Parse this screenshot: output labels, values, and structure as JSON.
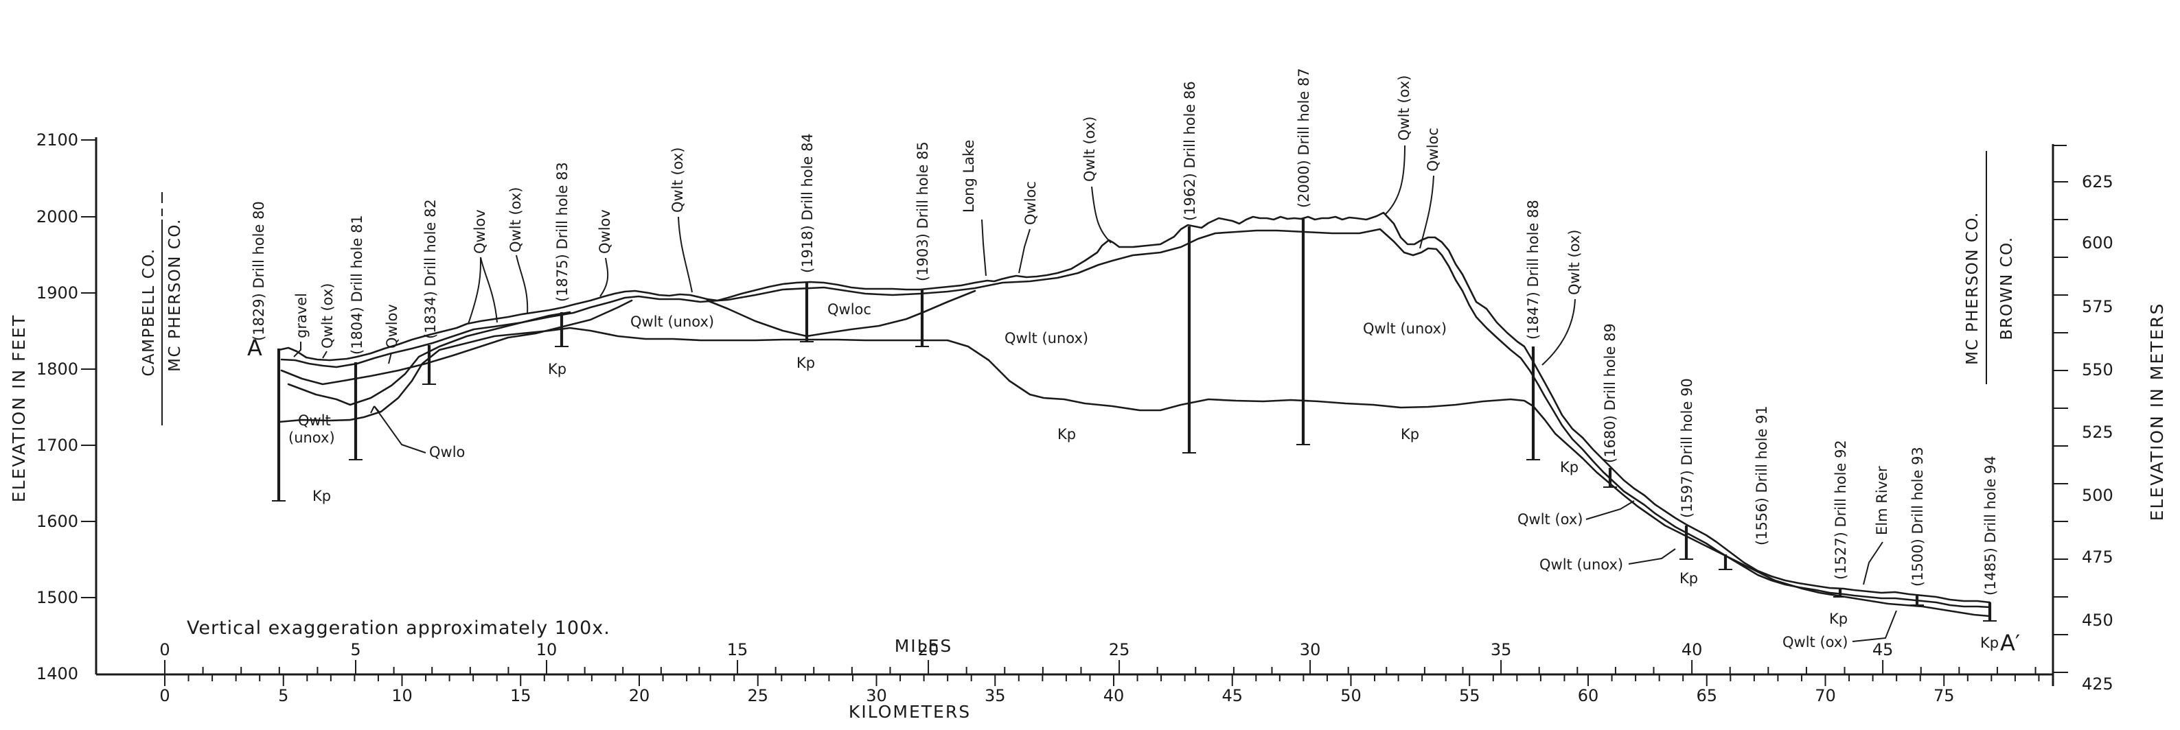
{
  "figure": {
    "left_axis_title": "ELEVATION IN FEET",
    "right_axis_title": "ELEVATION IN METERS",
    "miles_title": "MILES",
    "km_title": "KILOMETERS",
    "exaggeration_note": "Vertical exaggeration approximately 100x.",
    "section_start": "A",
    "section_end": "A′",
    "county_left_top": "CAMPBELL CO.",
    "county_left_bottom": "MC PHERSON CO.",
    "county_right_top": "MC PHERSON CO.",
    "county_right_bottom": "BROWN CO."
  },
  "feet_ticks": [
    "2100",
    "2000",
    "1900",
    "1800",
    "1700",
    "1600",
    "1500",
    "1400"
  ],
  "meter_ticks": [
    "625",
    "600",
    "575",
    "550",
    "525",
    "500",
    "475",
    "450",
    "425"
  ],
  "mile_labels": [
    "0",
    "5",
    "10",
    "15",
    "20",
    "25",
    "30",
    "35",
    "40",
    "45"
  ],
  "km_labels": [
    "0",
    "5",
    "10",
    "15",
    "20",
    "25",
    "30",
    "35",
    "40",
    "45",
    "50",
    "55",
    "60",
    "65",
    "70",
    "75"
  ],
  "drill_holes": [
    {
      "label": "(1829) Drill hole 80"
    },
    {
      "label": "(1804) Drill hole 81"
    },
    {
      "label": "(1834) Drill hole 82"
    },
    {
      "label": "(1875) Drill hole 83"
    },
    {
      "label": "(1918) Drill hole 84"
    },
    {
      "label": "(1903) Drill hole 85"
    },
    {
      "label": "(1962) Drill hole 86"
    },
    {
      "label": "(2000) Drill hole 87"
    },
    {
      "label": "(1847) Drill hole 88"
    },
    {
      "label": "(1680) Drill hole 89"
    },
    {
      "label": "(1597) Drill hole 90"
    },
    {
      "label": "(1556) Drill hole 91"
    },
    {
      "label": "(1527) Drill hole 92"
    },
    {
      "label": "(1500) Drill hole 93"
    },
    {
      "label": "(1485) Drill hole 94"
    }
  ],
  "units": {
    "gravel": "gravel",
    "qwlt_ox": "Qwlt (ox)",
    "qwlov": "Qwlov",
    "qwlo": "Qwlo",
    "qwloc": "Qwloc",
    "qwlt_unox": "Qwlt (unox)",
    "qwlt": "Qwlt",
    "unox": "(unox)",
    "kp": "Kp",
    "long_lake": "Long Lake",
    "elm_river": "Elm River"
  }
}
